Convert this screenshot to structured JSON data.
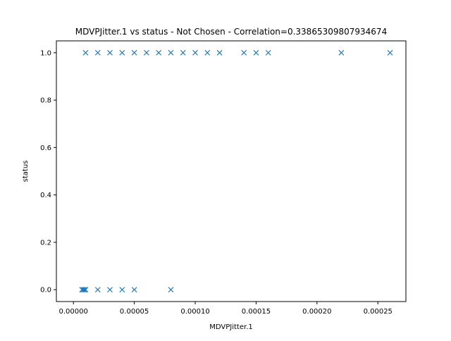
{
  "chart_data": {
    "type": "scatter",
    "title": "MDVPJitter.1 vs status - Not Chosen - Correlation=0.33865309807934674",
    "xlabel": "MDVPJitter.1",
    "ylabel": "status",
    "xlim": [
      -1.4e-05,
      0.000273
    ],
    "ylim": [
      -0.05,
      1.05
    ],
    "x_ticks": [
      0.0,
      5e-05,
      0.0001,
      0.00015,
      0.0002,
      0.00025
    ],
    "x_tick_labels": [
      "0.00000",
      "0.00005",
      "0.00010",
      "0.00015",
      "0.00020",
      "0.00025"
    ],
    "y_ticks": [
      0.0,
      0.2,
      0.4,
      0.6,
      0.8,
      1.0
    ],
    "y_tick_labels": [
      "0.0",
      "0.2",
      "0.4",
      "0.6",
      "0.8",
      "1.0"
    ],
    "marker": "x",
    "color": "#1f77b4",
    "grid": false,
    "legend": "none",
    "points": [
      {
        "x": 1e-05,
        "y": 1
      },
      {
        "x": 2e-05,
        "y": 1
      },
      {
        "x": 3e-05,
        "y": 1
      },
      {
        "x": 4e-05,
        "y": 1
      },
      {
        "x": 5e-05,
        "y": 1
      },
      {
        "x": 6e-05,
        "y": 1
      },
      {
        "x": 7e-05,
        "y": 1
      },
      {
        "x": 8e-05,
        "y": 1
      },
      {
        "x": 9e-05,
        "y": 1
      },
      {
        "x": 0.0001,
        "y": 1
      },
      {
        "x": 0.00011,
        "y": 1
      },
      {
        "x": 0.00012,
        "y": 1
      },
      {
        "x": 0.00014,
        "y": 1
      },
      {
        "x": 0.00015,
        "y": 1
      },
      {
        "x": 0.00016,
        "y": 1
      },
      {
        "x": 0.00022,
        "y": 1
      },
      {
        "x": 0.00026,
        "y": 1
      },
      {
        "x": 7e-06,
        "y": 0
      },
      {
        "x": 8e-06,
        "y": 0
      },
      {
        "x": 9e-06,
        "y": 0
      },
      {
        "x": 1e-05,
        "y": 0
      },
      {
        "x": 2e-05,
        "y": 0
      },
      {
        "x": 3e-05,
        "y": 0
      },
      {
        "x": 4e-05,
        "y": 0
      },
      {
        "x": 5e-05,
        "y": 0
      },
      {
        "x": 8e-05,
        "y": 0
      }
    ]
  }
}
